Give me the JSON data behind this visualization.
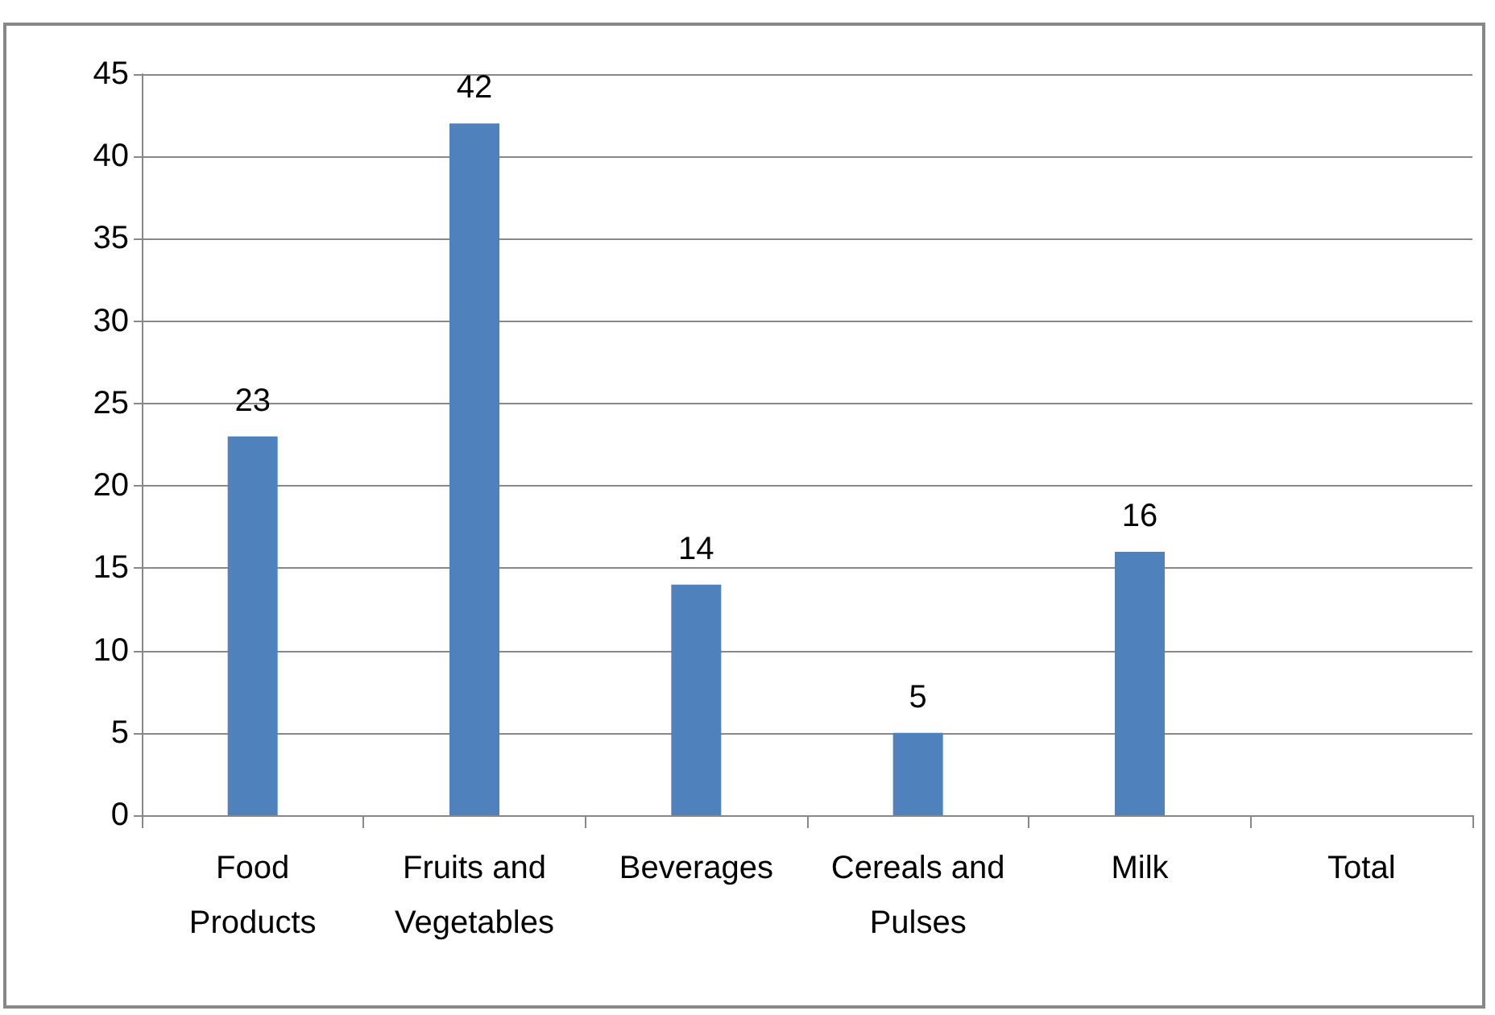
{
  "chart_data": {
    "type": "bar",
    "categories": [
      "Food\nProducts",
      "Fruits and\nVegetables",
      "Beverages",
      "Cereals and\nPulses",
      "Milk",
      "Total"
    ],
    "values": [
      23,
      42,
      14,
      5,
      16,
      null
    ],
    "color": "#4f81bd",
    "ylim": [
      0,
      45
    ],
    "yticks": [
      0,
      5,
      10,
      15,
      20,
      25,
      30,
      35,
      40,
      45
    ],
    "grid": "y",
    "data_labels": true
  }
}
